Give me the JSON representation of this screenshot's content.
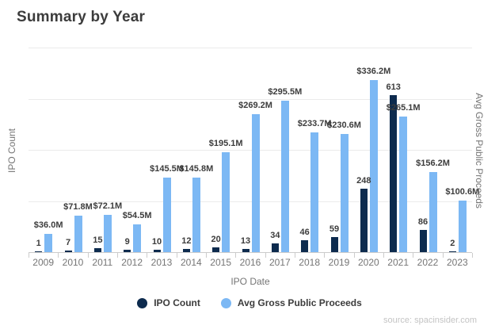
{
  "title": "Summary by Year",
  "source": "source: spacinsider.com",
  "axes": {
    "x_title": "IPO Date",
    "y_left_title": "IPO Count",
    "y_right_title": "Avg Gross Public Proceeds"
  },
  "legend": [
    {
      "label": "IPO Count",
      "color": "#0d2b4e"
    },
    {
      "label": "Avg Gross Public Proceeds",
      "color": "#7cb8f4"
    }
  ],
  "colors": {
    "ipo_count_bar": "#0d2b4e",
    "avg_proceeds_bar": "#7cb8f4",
    "gridline": "#ebebeb",
    "axis_line": "#cccccc",
    "axis_text": "#757575",
    "value_label_text": "#3c3c3c"
  },
  "chart_data": {
    "type": "bar",
    "title": "Summary by Year",
    "xlabel": "IPO Date",
    "ylabel_left": "IPO Count",
    "ylabel_right": "Avg Gross Public Proceeds",
    "categories": [
      "2009",
      "2010",
      "2011",
      "2012",
      "2013",
      "2014",
      "2015",
      "2016",
      "2017",
      "2018",
      "2019",
      "2020",
      "2021",
      "2022",
      "2023"
    ],
    "series": [
      {
        "name": "IPO Count",
        "axis": "left",
        "color": "#0d2b4e",
        "values": [
          1,
          7,
          15,
          9,
          10,
          12,
          20,
          13,
          34,
          46,
          59,
          248,
          613,
          86,
          2
        ],
        "labels": [
          "1",
          "7",
          "15",
          "9",
          "10",
          "12",
          "20",
          "13",
          "34",
          "46",
          "59",
          "248",
          "613",
          "86",
          "2"
        ]
      },
      {
        "name": "Avg Gross Public Proceeds",
        "axis": "right",
        "color": "#7cb8f4",
        "values": [
          36.0,
          71.8,
          72.1,
          54.5,
          145.5,
          145.8,
          195.1,
          269.2,
          295.5,
          233.7,
          230.6,
          336.2,
          265.1,
          156.2,
          100.6
        ],
        "labels": [
          "$36.0M",
          "$71.8M",
          "$72.1M",
          "$54.5M",
          "$145.5M",
          "$145.8M",
          "$195.1M",
          "$269.2M",
          "$295.5M",
          "$233.7M",
          "$230.6M",
          "$336.2M",
          "$265.1M",
          "$156.2M",
          "$100.6M"
        ]
      }
    ],
    "y_left_range": [
      0,
      800
    ],
    "y_right_range": [
      0,
      400
    ],
    "gridlines": true,
    "legend_position": "bottom"
  }
}
